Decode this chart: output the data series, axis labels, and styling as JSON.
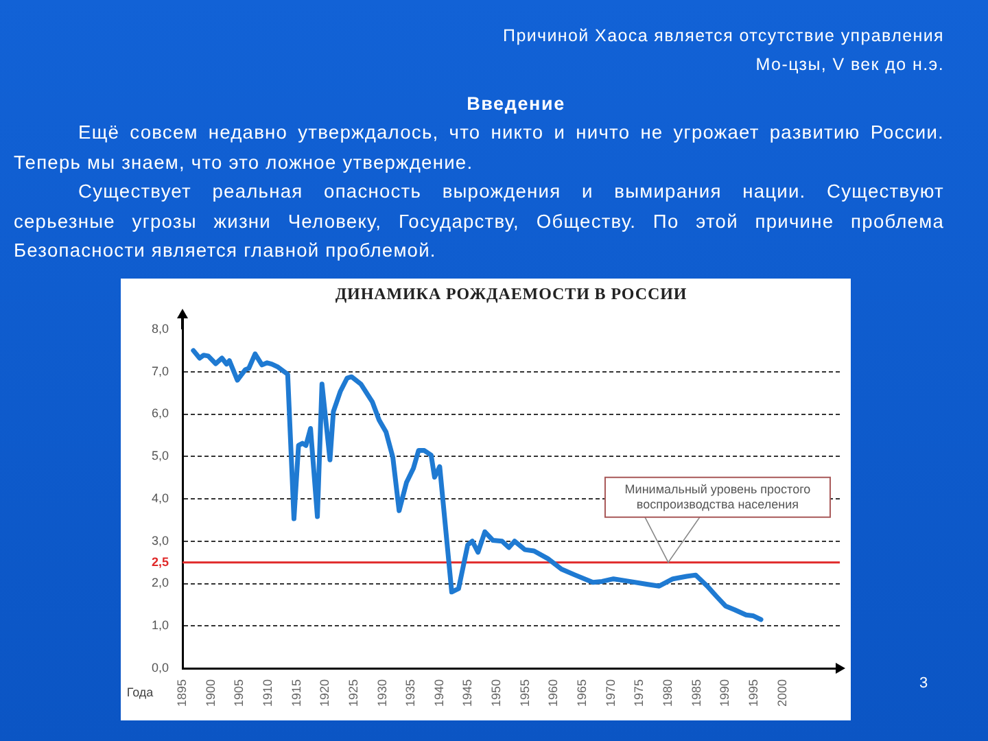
{
  "chart_data": {
    "type": "line",
    "title": "ДИНАМИКА РОЖДАЕМОСТИ В РОССИИ",
    "xlabel": "Года",
    "x": [
      1896.9,
      1898,
      1898.7,
      1899.5,
      1900.8,
      1901.9,
      1902.7,
      1903.2,
      1904.6,
      1906,
      1906.6,
      1907.7,
      1908.9,
      1909.8,
      1910.6,
      1911.7,
      1913.4,
      1914.5,
      1915.3,
      1916,
      1916.6,
      1917.4,
      1918.6,
      1919.4,
      1920.8,
      1921.4,
      1922.6,
      1923.8,
      1924.6,
      1926.2,
      1928.2,
      1929.4,
      1930.6,
      1931.8,
      1932.9,
      1934.2,
      1935.4,
      1936.3,
      1937.3,
      1938.5,
      1939.1,
      1940,
      1942.1,
      1943.3,
      1944.9,
      1945.7,
      1946.7,
      1947.9,
      1949.3,
      1950.9,
      1952.1,
      1953.1,
      1954.9,
      1956.5,
      1958.9,
      1961.3,
      1963.7,
      1966.8,
      1968.4,
      1970.4,
      1973.2,
      1976.4,
      1978.4,
      1980.8,
      1983.2,
      1984.8,
      1986.8,
      1988.4,
      1990,
      1991.6,
      1993.6,
      1994.8,
      1996.2
    ],
    "values": [
      7.5,
      7.32,
      7.39,
      7.37,
      7.19,
      7.32,
      7.18,
      7.26,
      6.8,
      7.05,
      7.08,
      7.42,
      7.16,
      7.21,
      7.18,
      7.11,
      6.94,
      3.53,
      5.26,
      5.31,
      5.26,
      5.66,
      3.58,
      6.71,
      4.92,
      6.06,
      6.53,
      6.85,
      6.88,
      6.71,
      6.29,
      5.86,
      5.58,
      4.98,
      3.72,
      4.39,
      4.72,
      5.14,
      5.14,
      5.03,
      4.51,
      4.76,
      1.8,
      1.88,
      2.91,
      3.0,
      2.74,
      3.22,
      3.02,
      3.0,
      2.85,
      3.0,
      2.8,
      2.77,
      2.59,
      2.34,
      2.2,
      2.03,
      2.05,
      2.11,
      2.05,
      1.98,
      1.94,
      2.11,
      2.17,
      2.2,
      1.94,
      1.7,
      1.47,
      1.38,
      1.26,
      1.24,
      1.15
    ],
    "color": "#1f7ad2",
    "xlim": [
      1895,
      2010
    ],
    "xticks": [
      1895,
      1900,
      1905,
      1910,
      1915,
      1920,
      1925,
      1930,
      1935,
      1940,
      1945,
      1950,
      1955,
      1960,
      1965,
      1970,
      1975,
      1980,
      1985,
      1990,
      1995,
      2000
    ],
    "ylim": [
      0,
      8
    ],
    "yticks": [
      {
        "value": 0,
        "label": "0,0"
      },
      {
        "value": 1,
        "label": "1,0"
      },
      {
        "value": 2,
        "label": "2,0"
      },
      {
        "value": 3,
        "label": "3,0"
      },
      {
        "value": 4,
        "label": "4,0"
      },
      {
        "value": 5,
        "label": "5,0"
      },
      {
        "value": 6,
        "label": "6,0"
      },
      {
        "value": 7,
        "label": "7,0"
      },
      {
        "value": 8,
        "label": "8,0"
      }
    ],
    "grid": "y",
    "marker": "none",
    "line_style": "solid",
    "ref_lines": [
      {
        "axis": "y",
        "value": 2.5,
        "label": "2,5",
        "color": "#e02a2a"
      }
    ],
    "annotations": [
      "Причиной Хаоса является отсутствие управления\nМо-цзы, V век до н.э.",
      "Введение",
      "Ещё совсем недавно утверждалось, что никто и ничто не угрожает развитию России. Теперь мы знаем, что это ложное утверждение.",
      "Существует реальная опасность вырождения и вымирания нации. Существуют серьезные угрозы жизни Человеку, Государству, Обществу. По этой причине проблема Безопасности является главной проблемой.",
      "Минимальный уровень простого воспроизводства населения",
      "3"
    ]
  }
}
